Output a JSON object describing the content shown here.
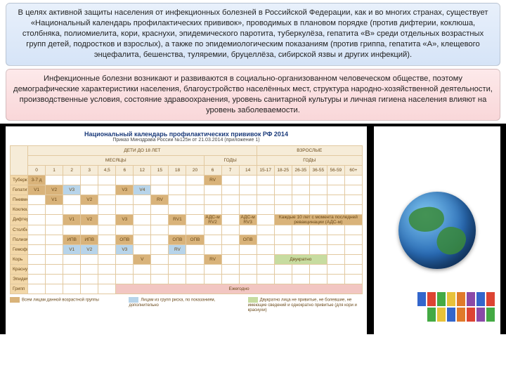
{
  "box1": "В целях активной защиты населения от инфекционных болезней в Российской Федерации, как и во многих странах, существует «Национальный календарь профилактических прививок», проводимых в плановом порядке (против дифтерии, коклюша, столбняка, полиомиелита, кори, краснухи, эпидемического паротита, туберкулёза, гепатита «В» среди отдельных возрастных групп детей, подростков и взрослых), а также по эпидемиологическим показаниям (против гриппа, гепатита «А», клещевого энцефалита, бешенства, туляремии, бруцеллёза, сибирской язвы и других инфекций).",
  "box2": "Инфекционные болезни возникают и развиваются в социально-организованном человеческом обществе, поэтому демографические характеристики населения, благоустройство населённых мест, структура народно-хозяйственной деятельности, производственные условия, состояние здравоохранения, уровень санитарной культуры и личная гигиена населения влияют на уровень заболеваемости.",
  "chart": {
    "title": "Национальный календарь профилактических прививок РФ 2014",
    "subtitle": "Приказ Минздрава России №125н от 21.03.2014 (приложение 1)",
    "group_children": "ДЕТИ ДО 18 ЛЕТ",
    "group_adults": "ВЗРОСЛЫЕ",
    "sub_months": "МЕСЯЦЫ",
    "sub_years": "ГОДЫ",
    "sub_years2": "ГОДЫ",
    "cols": [
      "0",
      "1",
      "2",
      "3",
      "4,5",
      "6",
      "12",
      "15",
      "18",
      "20",
      "6",
      "7",
      "14",
      "15-17",
      "18-25",
      "26-35",
      "36-55",
      "56-59",
      "60+"
    ],
    "rows": [
      {
        "label": "Туберкулёз",
        "cells": {
          "0": "3-7 д",
          "10": "RV"
        },
        "cls": {
          "0": "c-br",
          "10": "c-br"
        }
      },
      {
        "label": "Гепатит B",
        "cells": {
          "0": "V1",
          "1": "V2",
          "2": "V3",
          "5": "V3",
          "6": "V4"
        },
        "cls": {
          "0": "c-br",
          "1": "c-br",
          "2": "c-bl",
          "5": "c-br",
          "6": "c-bl"
        }
      },
      {
        "label": "Пневмококковая инфекция",
        "cells": {
          "1": "V1",
          "3": "V2",
          "7": "RV"
        },
        "cls": {
          "1": "c-br",
          "3": "c-br",
          "7": "c-br"
        }
      },
      {
        "label": "Коклюш",
        "cells": {},
        "cls": {}
      },
      {
        "label": "Дифтерия",
        "cells": {
          "2": "V1",
          "3": "V2",
          "5": "V3",
          "8": "RV1",
          "10": "АДС-м RV2",
          "12": "АДС-м RV3",
          "14": "Каждые 10 лет с момента последней ревакцинации (АДС-м)"
        },
        "cls": {
          "2": "c-br",
          "3": "c-br",
          "5": "c-br",
          "8": "c-br",
          "10": "c-br",
          "12": "c-br",
          "14": "c-br"
        },
        "span": {
          "14": 5
        }
      },
      {
        "label": "Столбняк",
        "cells": {},
        "cls": {}
      },
      {
        "label": "Полиомиелит",
        "cells": {
          "2": "ИПВ",
          "3": "ИПВ",
          "5": "ОПВ",
          "8": "ОПВ",
          "9": "ОПВ",
          "12": "ОПВ"
        },
        "cls": {
          "2": "c-br",
          "3": "c-br",
          "5": "c-br",
          "8": "c-br",
          "9": "c-br",
          "12": "c-br"
        }
      },
      {
        "label": "Гемофильная инфекция",
        "cells": {
          "2": "V1",
          "3": "V2",
          "5": "V3",
          "8": "RV"
        },
        "cls": {
          "2": "c-bl",
          "3": "c-bl",
          "5": "c-bl",
          "8": "c-bl"
        }
      },
      {
        "label": "Корь",
        "cells": {
          "6": "V",
          "10": "RV",
          "14": "Двукратно"
        },
        "cls": {
          "6": "c-br",
          "10": "c-br",
          "14": "c-gr"
        },
        "span": {
          "14": 3
        }
      },
      {
        "label": "Краснуха",
        "cells": {},
        "cls": {}
      },
      {
        "label": "Эпидемический паротит",
        "cells": {},
        "cls": {}
      },
      {
        "label": "Грипп",
        "cells": {
          "5": "Ежегодно"
        },
        "cls": {
          "5": "c-pk"
        },
        "span": {
          "5": 14
        }
      }
    ],
    "legend": [
      {
        "color": "#d9b37a",
        "text": "Всем лицам данной возрастной группы"
      },
      {
        "color": "#b7d4ea",
        "text": "Лицам из групп риска, по показаниям, дополнительно"
      },
      {
        "color": "#c7dca0",
        "text": "Двукратно лица не привитые, не болевшие, не имеющие сведений и однократно привитые (для кори и краснухи)"
      }
    ]
  }
}
